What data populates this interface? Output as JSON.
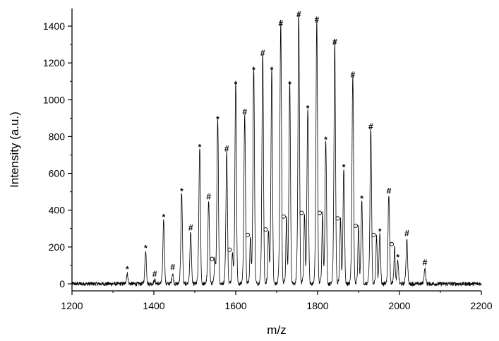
{
  "chart_data": {
    "type": "line",
    "title": "",
    "xlabel": "m/z",
    "ylabel": "Intensity (a.u.)",
    "xlim": [
      1200,
      2200
    ],
    "ylim": [
      -50,
      1500
    ],
    "x_ticks": [
      1200,
      1400,
      1600,
      1800,
      2000,
      2200
    ],
    "y_ticks": [
      0,
      200,
      400,
      600,
      800,
      1000,
      1200,
      1400
    ],
    "grid": false,
    "legend": "none",
    "line_color": "#000000",
    "peaks": [
      {
        "x": 1335,
        "y": 55,
        "marker": "*"
      },
      {
        "x": 1380,
        "y": 170,
        "marker": "*"
      },
      {
        "x": 1402,
        "y": 20,
        "marker": "#"
      },
      {
        "x": 1424,
        "y": 340,
        "marker": "*"
      },
      {
        "x": 1446,
        "y": 55,
        "marker": "#"
      },
      {
        "x": 1468,
        "y": 480,
        "marker": "*"
      },
      {
        "x": 1490,
        "y": 270,
        "marker": "#"
      },
      {
        "x": 1512,
        "y": 720,
        "marker": "*"
      },
      {
        "x": 1534,
        "y": 440,
        "marker": "#"
      },
      {
        "x": 1549,
        "y": 120,
        "marker": "o"
      },
      {
        "x": 1556,
        "y": 870,
        "marker": "*"
      },
      {
        "x": 1578,
        "y": 700,
        "marker": "#"
      },
      {
        "x": 1592,
        "y": 170,
        "marker": "o"
      },
      {
        "x": 1600,
        "y": 1060,
        "marker": "*"
      },
      {
        "x": 1622,
        "y": 900,
        "marker": "#"
      },
      {
        "x": 1636,
        "y": 250,
        "marker": "o"
      },
      {
        "x": 1644,
        "y": 1140,
        "marker": "*"
      },
      {
        "x": 1666,
        "y": 1220,
        "marker": "#"
      },
      {
        "x": 1680,
        "y": 280,
        "marker": "o"
      },
      {
        "x": 1688,
        "y": 1140,
        "marker": "*"
      },
      {
        "x": 1710,
        "y": 1380,
        "marker": "#"
      },
      {
        "x": 1724,
        "y": 350,
        "marker": "o"
      },
      {
        "x": 1732,
        "y": 1060,
        "marker": "*"
      },
      {
        "x": 1754,
        "y": 1430,
        "marker": "#"
      },
      {
        "x": 1768,
        "y": 370,
        "marker": "o"
      },
      {
        "x": 1776,
        "y": 930,
        "marker": "*"
      },
      {
        "x": 1798,
        "y": 1400,
        "marker": "#"
      },
      {
        "x": 1812,
        "y": 370,
        "marker": "o"
      },
      {
        "x": 1820,
        "y": 760,
        "marker": "*"
      },
      {
        "x": 1842,
        "y": 1280,
        "marker": "#"
      },
      {
        "x": 1856,
        "y": 340,
        "marker": "o"
      },
      {
        "x": 1864,
        "y": 610,
        "marker": "*"
      },
      {
        "x": 1886,
        "y": 1100,
        "marker": "#"
      },
      {
        "x": 1900,
        "y": 300,
        "marker": "o"
      },
      {
        "x": 1908,
        "y": 440,
        "marker": "*"
      },
      {
        "x": 1930,
        "y": 820,
        "marker": "#"
      },
      {
        "x": 1944,
        "y": 250,
        "marker": "o"
      },
      {
        "x": 1952,
        "y": 260,
        "marker": "*"
      },
      {
        "x": 1974,
        "y": 470,
        "marker": "#"
      },
      {
        "x": 1988,
        "y": 200,
        "marker": "o"
      },
      {
        "x": 1996,
        "y": 120,
        "marker": "*"
      },
      {
        "x": 2018,
        "y": 240,
        "marker": "#"
      },
      {
        "x": 2062,
        "y": 80,
        "marker": "#"
      }
    ]
  }
}
